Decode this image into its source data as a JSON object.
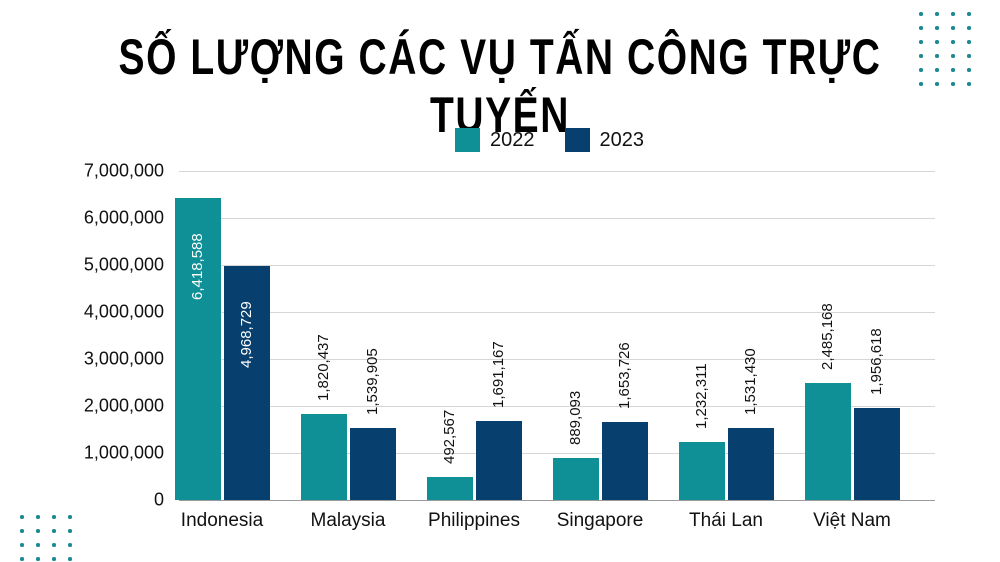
{
  "title": "SỐ LƯỢNG CÁC VỤ TẤN CÔNG TRỰC TUYẾN",
  "colors": {
    "series_2022": "#0e9096",
    "series_2023": "#073f6e",
    "grid": "#d6d6d6",
    "dots": "#1a8a94"
  },
  "legend": [
    {
      "label": "2022",
      "color": "#0e9096"
    },
    {
      "label": "2023",
      "color": "#073f6e"
    }
  ],
  "y_ticks": [
    "7,000,000",
    "6,000,000",
    "5,000,000",
    "4,000,000",
    "3,000,000",
    "2,000,000",
    "1,000,000",
    "0"
  ],
  "chart_data": {
    "type": "bar",
    "title": "SỐ LƯỢNG CÁC VỤ TẤN CÔNG TRỰC TUYẾN",
    "xlabel": "",
    "ylabel": "",
    "categories": [
      "Indonesia",
      "Malaysia",
      "Philippines",
      "Singapore",
      "Thái Lan",
      "Việt Nam"
    ],
    "series": [
      {
        "name": "2022",
        "values": [
          6418588,
          1820437,
          492567,
          889093,
          1232311,
          2485168
        ],
        "labels": [
          "6,418,588",
          "1,820,437",
          "492,567",
          "889,093",
          "1,232,311",
          "2,485,168"
        ]
      },
      {
        "name": "2023",
        "values": [
          4968729,
          1539905,
          1691167,
          1653726,
          1531430,
          1956618
        ],
        "labels": [
          "4,968,729",
          "1,539,905",
          "1,691,167",
          "1,653,726",
          "1,531,430",
          "1,956,618"
        ]
      }
    ],
    "ylim": [
      0,
      7000000
    ],
    "y_tick_step": 1000000,
    "grid": true,
    "legend_position": "top",
    "data_labels": "rotated vertical"
  }
}
